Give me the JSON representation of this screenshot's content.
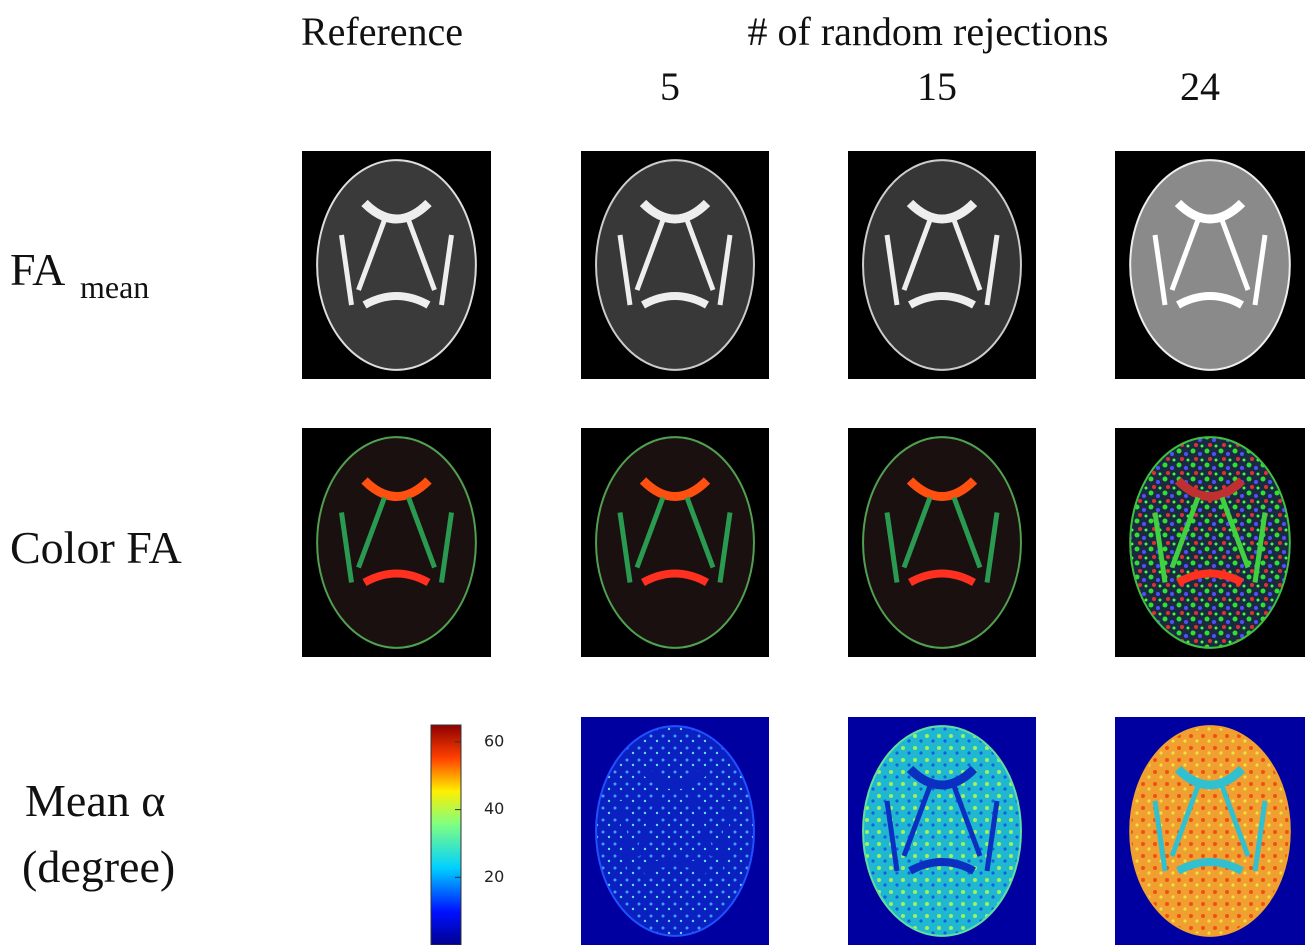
{
  "header": {
    "reference": "Reference",
    "group_title": "# of random rejections",
    "columns": [
      "5",
      "15",
      "24"
    ]
  },
  "rows": [
    {
      "label": "FA",
      "subscript": "mean"
    },
    {
      "label": "Color FA"
    },
    {
      "label_lines": [
        "Mean α",
        "(degree)"
      ]
    }
  ],
  "colorbar": {
    "range": [
      0,
      65
    ],
    "ticks": [
      20,
      40,
      60
    ]
  }
}
